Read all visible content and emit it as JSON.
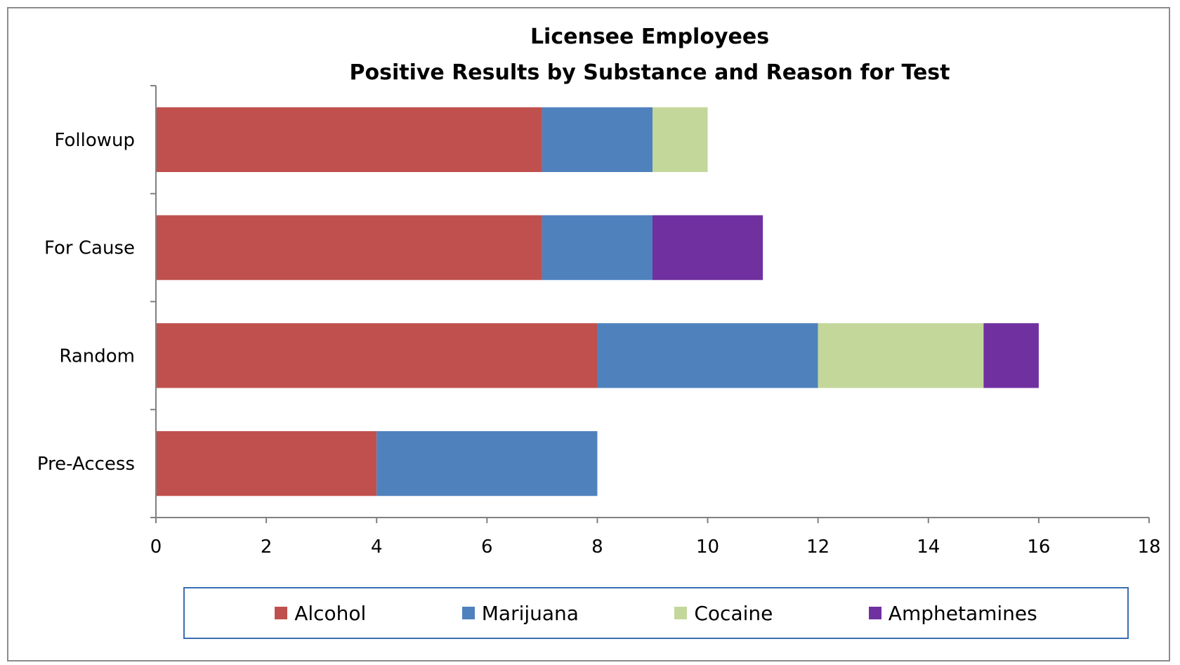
{
  "chart_data": {
    "type": "bar",
    "orientation": "horizontal",
    "stacked": true,
    "title": [
      "Licensee Employees",
      "Positive Results by Substance and Reason for Test"
    ],
    "categories": [
      "Followup",
      "For Cause",
      "Random",
      "Pre-Access"
    ],
    "series": [
      {
        "name": "Alcohol",
        "color": "#c0504d",
        "values": [
          7,
          7,
          8,
          4
        ]
      },
      {
        "name": "Marijuana",
        "color": "#4f81bd",
        "values": [
          2,
          2,
          4,
          4
        ]
      },
      {
        "name": "Cocaine",
        "color": "#c4d79b",
        "values": [
          1,
          0,
          3,
          0
        ]
      },
      {
        "name": "Amphetamines",
        "color": "#7030a0",
        "values": [
          0,
          2,
          1,
          0
        ]
      }
    ],
    "xlim": [
      0,
      18
    ],
    "xticks": [
      "0",
      "2",
      "4",
      "6",
      "8",
      "10",
      "12",
      "14",
      "16",
      "18"
    ],
    "grid": false,
    "legend": "bottom"
  }
}
